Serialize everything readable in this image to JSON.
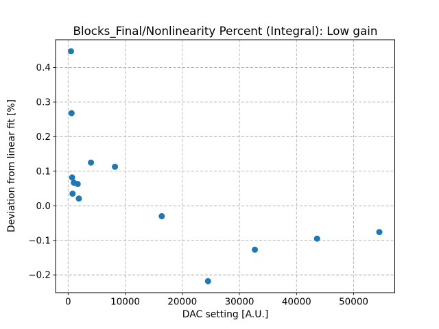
{
  "figure": {
    "background": "#ffffff",
    "text_color": "#000000",
    "spine_color": "#000000"
  },
  "chart_data": {
    "type": "scatter",
    "title": "Blocks_Final/Nonlinearity Percent (Integral): Low gain",
    "xlabel": "DAC setting [A.U.]",
    "ylabel": "Deviation from linear fit [%]",
    "x": [
      500,
      600,
      700,
      780,
      1000,
      1680,
      1880,
      4000,
      8200,
      16400,
      24500,
      32700,
      43600,
      54500
    ],
    "y": [
      0.447,
      0.268,
      0.082,
      0.035,
      0.067,
      0.063,
      0.021,
      0.125,
      0.113,
      -0.03,
      -0.218,
      -0.127,
      -0.095,
      -0.076
    ],
    "xlim": [
      -2200,
      57200
    ],
    "ylim": [
      -0.2513,
      0.4803
    ],
    "xticks": {
      "values": [
        0,
        10000,
        20000,
        30000,
        40000,
        50000
      ],
      "labels": [
        "0",
        "10000",
        "20000",
        "30000",
        "40000",
        "50000"
      ]
    },
    "yticks": {
      "values": [
        -0.2,
        -0.1,
        0.0,
        0.1,
        0.2,
        0.3,
        0.4
      ],
      "labels": [
        "−0.2",
        "−0.1",
        "0.0",
        "0.1",
        "0.2",
        "0.3",
        "0.4"
      ]
    },
    "grid": {
      "visible": true,
      "color": "#b0b0b0",
      "style": "dashed"
    },
    "marker": {
      "shape": "circle",
      "color": "#1f77b4",
      "radius_px": 4.5
    },
    "legend": null
  }
}
